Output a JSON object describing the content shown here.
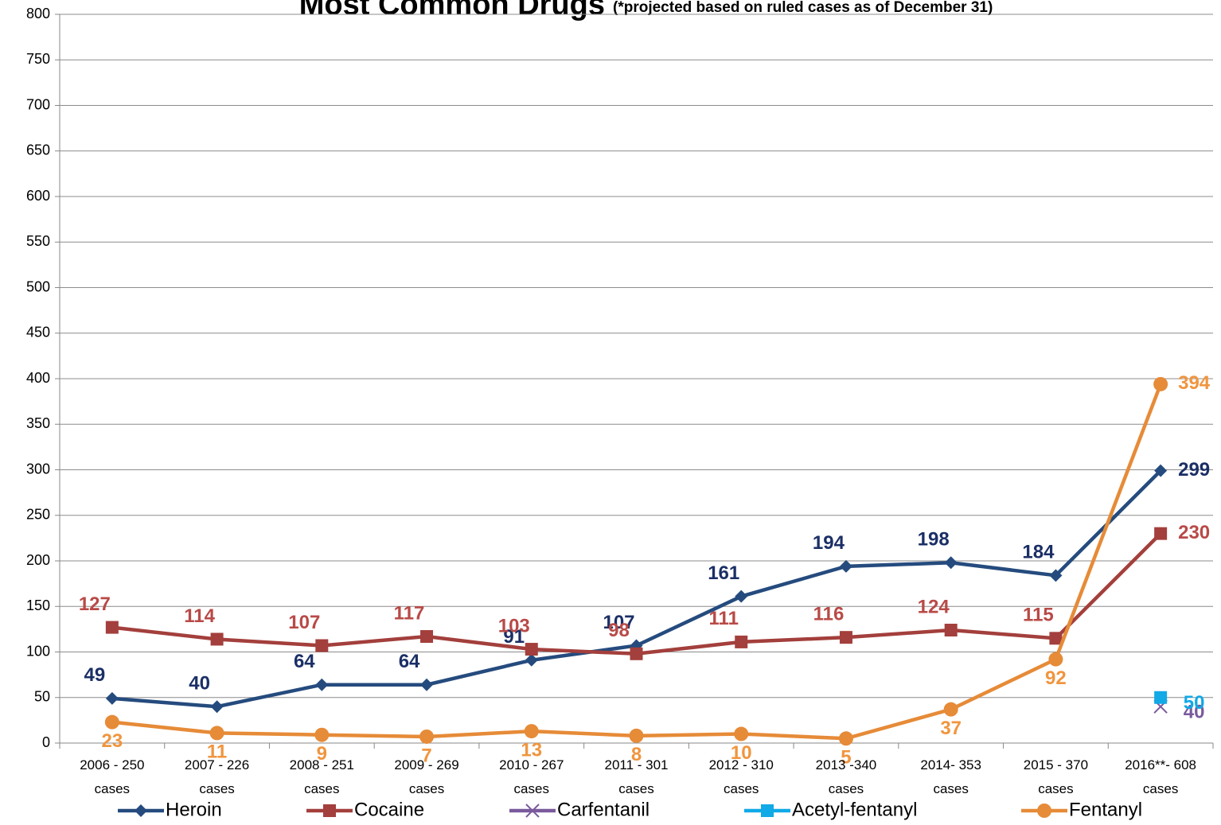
{
  "chart_data": {
    "type": "line",
    "title": "Most Common Drugs",
    "subtitle": "(*projected based on ruled cases as of December 31)",
    "categories": [
      "2006 - 250 cases",
      "2007 - 226 cases",
      "2008 - 251 cases",
      "2009 - 269 cases",
      "2010 - 267 cases",
      "2011 - 301 cases",
      "2012 - 310 cases",
      "2013 -340 cases",
      "2014- 353 cases",
      "2015 - 370 cases",
      "2016**- 608 cases"
    ],
    "series": [
      {
        "name": "Heroin",
        "color": "#254b7e",
        "label_color": "#1b2f66",
        "marker": "diamond",
        "values": [
          49,
          40,
          64,
          64,
          91,
          107,
          161,
          194,
          198,
          184,
          299
        ]
      },
      {
        "name": "Cocaine",
        "color": "#a33f3c",
        "label_color": "#b84a47",
        "marker": "square",
        "values": [
          127,
          114,
          107,
          117,
          103,
          98,
          111,
          116,
          124,
          115,
          230
        ]
      },
      {
        "name": "Carfentanil",
        "color": "#7a5a9c",
        "label_color": "#7a5a9c",
        "marker": "x",
        "values": [
          null,
          null,
          null,
          null,
          null,
          null,
          null,
          null,
          null,
          null,
          40
        ]
      },
      {
        "name": "Acetyl-fentanyl",
        "color": "#11a9e6",
        "label_color": "#11a9e6",
        "marker": "square",
        "values": [
          null,
          null,
          null,
          null,
          null,
          null,
          null,
          null,
          null,
          null,
          50
        ]
      },
      {
        "name": "Fentanyl",
        "color": "#e68b38",
        "label_color": "#f0953f",
        "marker": "circle",
        "values": [
          23,
          11,
          9,
          7,
          13,
          8,
          10,
          5,
          37,
          92,
          394
        ]
      }
    ],
    "ylim": [
      0,
      800
    ],
    "yticks": [
      0,
      50,
      100,
      150,
      200,
      250,
      300,
      350,
      400,
      450,
      500,
      550,
      600,
      650,
      700,
      750,
      800
    ],
    "grid": true
  }
}
